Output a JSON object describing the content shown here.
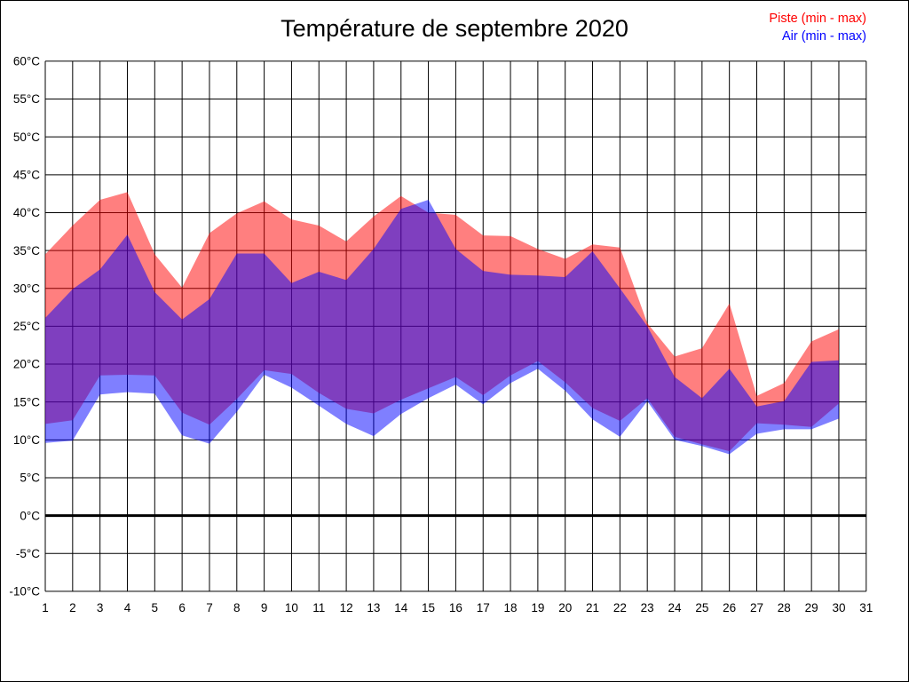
{
  "title": "Température de septembre 2020",
  "legend": {
    "piste_label": "Piste (min - max)",
    "air_label": "Air (min - max)",
    "piste_color": "#ff0000",
    "air_color": "#0000ff"
  },
  "chart_data": {
    "type": "area",
    "subtype": "min-max-bands",
    "title": "Température de septembre 2020",
    "xlabel": "",
    "ylabel": "",
    "x": [
      1,
      2,
      3,
      4,
      5,
      6,
      7,
      8,
      9,
      10,
      11,
      12,
      13,
      14,
      15,
      16,
      17,
      18,
      19,
      20,
      21,
      22,
      23,
      24,
      25,
      26,
      27,
      28,
      29,
      30
    ],
    "x_tick_labels": [
      "1",
      "2",
      "3",
      "4",
      "5",
      "6",
      "7",
      "8",
      "9",
      "10",
      "11",
      "12",
      "13",
      "14",
      "15",
      "16",
      "17",
      "18",
      "19",
      "20",
      "21",
      "22",
      "23",
      "24",
      "25",
      "26",
      "27",
      "28",
      "29",
      "30",
      "31"
    ],
    "y_ticks": [
      60,
      55,
      50,
      45,
      40,
      35,
      30,
      25,
      20,
      15,
      10,
      5,
      0,
      -5,
      -10
    ],
    "y_tick_labels": [
      "60°C",
      "55°C",
      "50°C",
      "45°C",
      "40°C",
      "35°C",
      "30°C",
      "25°C",
      "20°C",
      "15°C",
      "10°C",
      "5°C",
      "0°C",
      "-5°C",
      "-10°C"
    ],
    "xlim": [
      1,
      31
    ],
    "ylim": [
      -10,
      60
    ],
    "grid": true,
    "zero_line": 0,
    "grid_color": "#000000",
    "legend_position": "top-right",
    "series": [
      {
        "name": "Piste (min - max)",
        "legend_color": "#ff0000",
        "fill": "rgba(255,0,0,0.5)",
        "max": [
          34.5,
          38.3,
          41.7,
          42.7,
          34.5,
          30.1,
          37.3,
          39.9,
          41.5,
          39.1,
          38.3,
          36.2,
          39.5,
          42.2,
          40.0,
          39.7,
          37.0,
          36.9,
          35.2,
          33.9,
          35.8,
          35.4,
          25.4,
          21.0,
          22.1,
          28.0,
          15.8,
          17.5,
          23.0,
          24.6
        ],
        "min": [
          12.1,
          12.6,
          18.5,
          18.6,
          18.5,
          13.6,
          12.0,
          15.4,
          19.2,
          18.7,
          16.2,
          14.1,
          13.5,
          15.3,
          16.8,
          18.3,
          15.9,
          18.5,
          20.4,
          17.6,
          14.2,
          12.5,
          15.5,
          10.4,
          9.4,
          8.5,
          12.2,
          12.0,
          11.7,
          14.8
        ]
      },
      {
        "name": "Air (min - max)",
        "legend_color": "#0000ff",
        "fill": "rgba(0,0,255,0.5)",
        "max": [
          26.1,
          29.9,
          32.5,
          37.1,
          29.5,
          25.9,
          28.6,
          34.6,
          34.6,
          30.7,
          32.2,
          31.1,
          35.2,
          40.5,
          41.7,
          35.2,
          32.3,
          31.8,
          31.7,
          31.5,
          34.9,
          30.0,
          25.0,
          18.3,
          15.5,
          19.4,
          14.4,
          15.1,
          20.3,
          20.5
        ],
        "min": [
          9.6,
          9.9,
          16.0,
          16.3,
          16.1,
          10.6,
          9.5,
          13.7,
          18.6,
          16.9,
          14.5,
          12.1,
          10.5,
          13.4,
          15.5,
          17.3,
          14.7,
          17.5,
          19.4,
          16.5,
          12.7,
          10.4,
          15.1,
          10.0,
          9.2,
          8.1,
          10.8,
          11.4,
          11.4,
          12.8
        ]
      }
    ]
  }
}
